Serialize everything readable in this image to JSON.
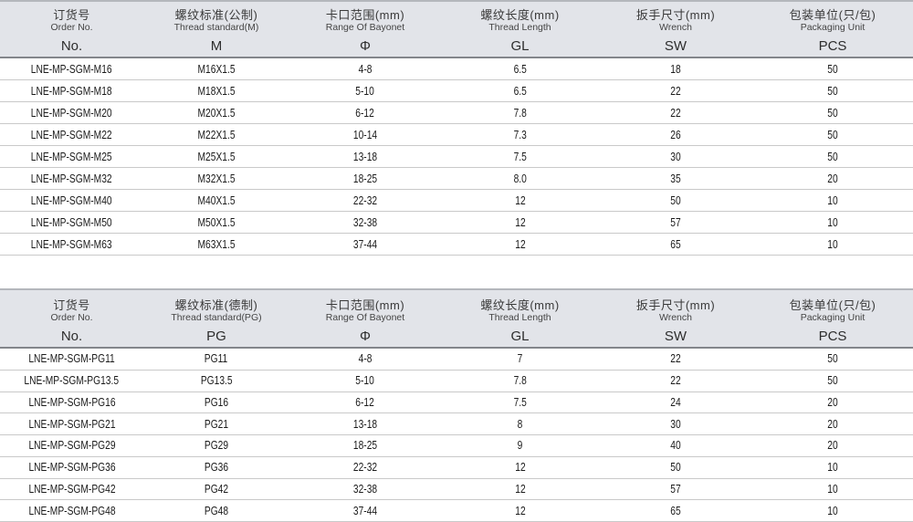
{
  "colors": {
    "header_bg": "#e2e4e9",
    "header_top_border": "#b4b7bc",
    "header_bottom_border": "#83868b",
    "row_divider": "#c9c9c9",
    "body_text": "#1b1b1b",
    "header_text": "#3a3a3a"
  },
  "tables": [
    {
      "name": "metric-thread-table",
      "columns": [
        {
          "zh": "订货号",
          "en": "Order No.",
          "code": "No."
        },
        {
          "zh": "螺纹标准(公制)",
          "en": "Thread standard(M)",
          "code": "M"
        },
        {
          "zh": "卡口范围(mm)",
          "en": "Range Of Bayonet",
          "code": "Φ"
        },
        {
          "zh": "螺纹长度(mm)",
          "en": "Thread Length",
          "code": "GL"
        },
        {
          "zh": "扳手尺寸(mm)",
          "en": "Wrench",
          "code": "SW"
        },
        {
          "zh": "包装单位(只/包)",
          "en": "Packaging Unit",
          "code": "PCS"
        }
      ],
      "rows": [
        [
          "LNE-MP-SGM-M16",
          "M16X1.5",
          "4-8",
          "6.5",
          "18",
          "50"
        ],
        [
          "LNE-MP-SGM-M18",
          "M18X1.5",
          "5-10",
          "6.5",
          "22",
          "50"
        ],
        [
          "LNE-MP-SGM-M20",
          "M20X1.5",
          "6-12",
          "7.8",
          "22",
          "50"
        ],
        [
          "LNE-MP-SGM-M22",
          "M22X1.5",
          "10-14",
          "7.3",
          "26",
          "50"
        ],
        [
          "LNE-MP-SGM-M25",
          "M25X1.5",
          "13-18",
          "7.5",
          "30",
          "50"
        ],
        [
          "LNE-MP-SGM-M32",
          "M32X1.5",
          "18-25",
          "8.0",
          "35",
          "20"
        ],
        [
          "LNE-MP-SGM-M40",
          "M40X1.5",
          "22-32",
          "12",
          "50",
          "10"
        ],
        [
          "LNE-MP-SGM-M50",
          "M50X1.5",
          "32-38",
          "12",
          "57",
          "10"
        ],
        [
          "LNE-MP-SGM-M63",
          "M63X1.5",
          "37-44",
          "12",
          "65",
          "10"
        ]
      ]
    },
    {
      "name": "pg-thread-table",
      "columns": [
        {
          "zh": "订货号",
          "en": "Order No.",
          "code": "No."
        },
        {
          "zh": "螺纹标准(德制)",
          "en": "Thread standard(PG)",
          "code": "PG"
        },
        {
          "zh": "卡口范围(mm)",
          "en": "Range Of Bayonet",
          "code": "Φ"
        },
        {
          "zh": "螺纹长度(mm)",
          "en": "Thread Length",
          "code": "GL"
        },
        {
          "zh": "扳手尺寸(mm)",
          "en": "Wrench",
          "code": "SW"
        },
        {
          "zh": "包装单位(只/包)",
          "en": "Packaging Unit",
          "code": "PCS"
        }
      ],
      "rows": [
        [
          "LNE-MP-SGM-PG11",
          "PG11",
          "4-8",
          "7",
          "22",
          "50"
        ],
        [
          "LNE-MP-SGM-PG13.5",
          "PG13.5",
          "5-10",
          "7.8",
          "22",
          "50"
        ],
        [
          "LNE-MP-SGM-PG16",
          "PG16",
          "6-12",
          "7.5",
          "24",
          "20"
        ],
        [
          "LNE-MP-SGM-PG21",
          "PG21",
          "13-18",
          "8",
          "30",
          "20"
        ],
        [
          "LNE-MP-SGM-PG29",
          "PG29",
          "18-25",
          "9",
          "40",
          "20"
        ],
        [
          "LNE-MP-SGM-PG36",
          "PG36",
          "22-32",
          "12",
          "50",
          "10"
        ],
        [
          "LNE-MP-SGM-PG42",
          "PG42",
          "32-38",
          "12",
          "57",
          "10"
        ],
        [
          "LNE-MP-SGM-PG48",
          "PG48",
          "37-44",
          "12",
          "65",
          "10"
        ]
      ]
    }
  ]
}
